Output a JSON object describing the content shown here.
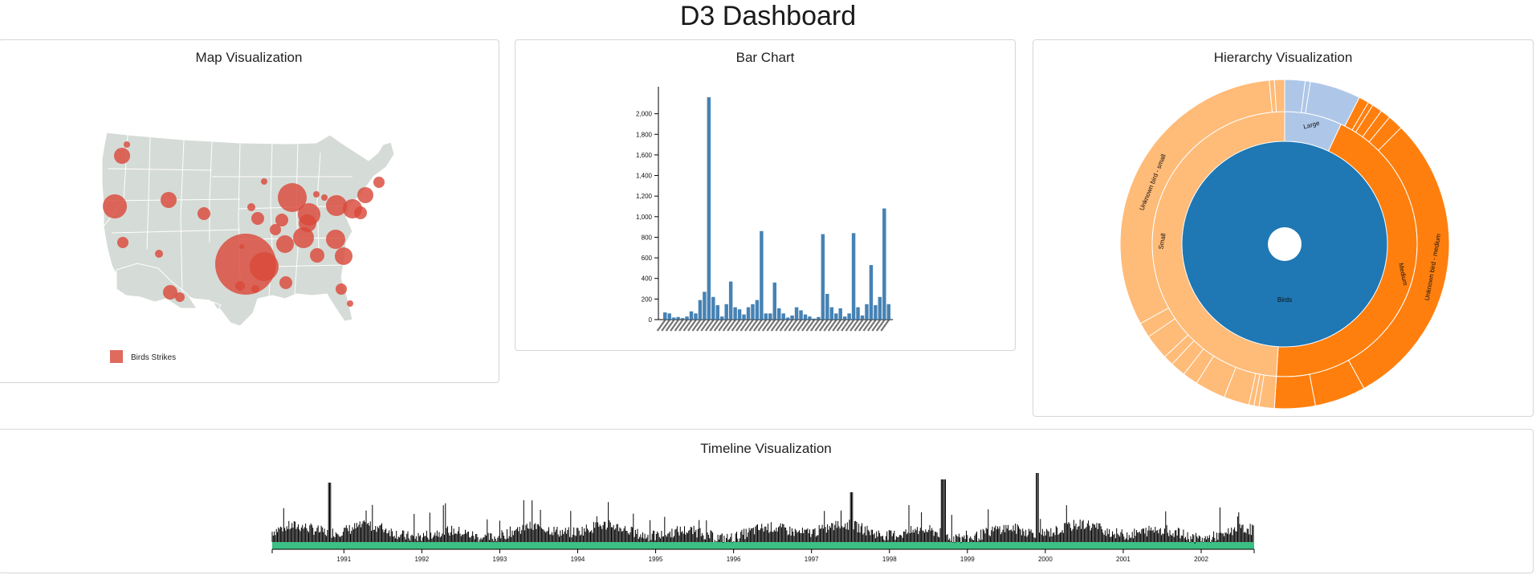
{
  "page": {
    "title": "D3 Dashboard"
  },
  "map_panel": {
    "title": "Map Visualization",
    "legend_label": "Birds Strikes",
    "land_color": "#d5dbd6",
    "bubble_color": "#d9493a"
  },
  "bar_panel": {
    "title": "Bar Chart",
    "bar_color": "#4682b4"
  },
  "hierarchy_panel": {
    "title": "Hierarchy Visualization",
    "colors": {
      "birds": "#1f77b4",
      "small": "#ffbb78",
      "medium": "#ff7f0e",
      "large": "#aec7e8"
    }
  },
  "timeline_panel": {
    "title": "Timeline Visualization",
    "area_color": "#3cc084"
  },
  "chart_data": [
    {
      "type": "bar",
      "title": "Bar Chart",
      "ylim": [
        0,
        2200
      ],
      "y_ticks": [
        0,
        200,
        400,
        600,
        800,
        1000,
        1200,
        1400,
        1600,
        1800,
        2000
      ],
      "y_tick_labels": [
        "0",
        "200",
        "400",
        "600",
        "800",
        "1,000",
        "1,200",
        "1,400",
        "1,600",
        "1,800",
        "2,000"
      ],
      "values": [
        70,
        60,
        20,
        25,
        15,
        30,
        80,
        60,
        190,
        270,
        2160,
        220,
        140,
        30,
        150,
        370,
        120,
        100,
        50,
        120,
        150,
        190,
        860,
        60,
        60,
        360,
        110,
        60,
        20,
        40,
        120,
        90,
        50,
        30,
        10,
        25,
        830,
        250,
        120,
        60,
        110,
        30,
        60,
        840,
        120,
        40,
        150,
        530,
        140,
        220,
        1080,
        150
      ],
      "grid": false
    },
    {
      "type": "area",
      "title": "Timeline Visualization",
      "x_tick_labels": [
        "1991",
        "1992",
        "1993",
        "1994",
        "1995",
        "1996",
        "1997",
        "1998",
        "1999",
        "2000",
        "2001",
        "2002"
      ],
      "x_range": [
        "1990-01-01",
        "2002-12-31"
      ],
      "grid": false
    },
    {
      "type": "pie",
      "title": "Hierarchy Visualization",
      "levels": [
        {
          "name": "Birds",
          "value": 1
        },
        {
          "name": "Small",
          "value": 0.5
        },
        {
          "name": "Medium",
          "value": 0.41
        },
        {
          "name": "Large",
          "value": 0.09
        }
      ],
      "outer_labels": [
        "Unknown bird - small",
        "Unknown bird - medium"
      ]
    }
  ]
}
